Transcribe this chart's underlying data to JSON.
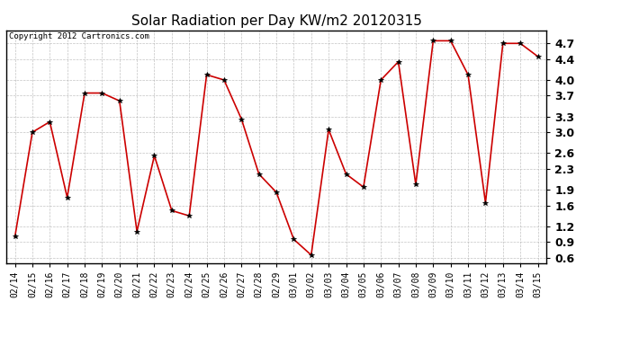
{
  "title": "Solar Radiation per Day KW/m2 20120315",
  "copyright_text": "Copyright 2012 Cartronics.com",
  "x_labels": [
    "02/14",
    "02/15",
    "02/16",
    "02/17",
    "02/18",
    "02/19",
    "02/20",
    "02/21",
    "02/22",
    "02/23",
    "02/24",
    "02/25",
    "02/26",
    "02/27",
    "02/28",
    "02/29",
    "03/01",
    "03/02",
    "03/03",
    "03/04",
    "03/05",
    "03/06",
    "03/07",
    "03/08",
    "03/09",
    "03/10",
    "03/11",
    "03/12",
    "03/13",
    "03/14",
    "03/15"
  ],
  "y_values": [
    1.0,
    3.0,
    3.2,
    1.75,
    3.75,
    3.75,
    3.6,
    1.1,
    2.55,
    1.5,
    1.4,
    4.1,
    4.0,
    3.25,
    2.2,
    1.85,
    0.95,
    0.65,
    3.05,
    2.2,
    1.95,
    4.0,
    4.35,
    2.0,
    4.75,
    4.75,
    4.1,
    1.65,
    4.7,
    4.7,
    4.45
  ],
  "line_color": "#cc0000",
  "marker": "*",
  "marker_color": "#000000",
  "background_color": "#ffffff",
  "grid_color": "#aaaaaa",
  "ylim": [
    0.5,
    4.95
  ],
  "yticks": [
    0.6,
    0.9,
    1.2,
    1.6,
    1.9,
    2.3,
    2.6,
    3.0,
    3.3,
    3.7,
    4.0,
    4.4,
    4.7
  ],
  "title_fontsize": 11,
  "copyright_fontsize": 6.5,
  "tick_fontsize": 7,
  "ytick_fontsize": 9
}
